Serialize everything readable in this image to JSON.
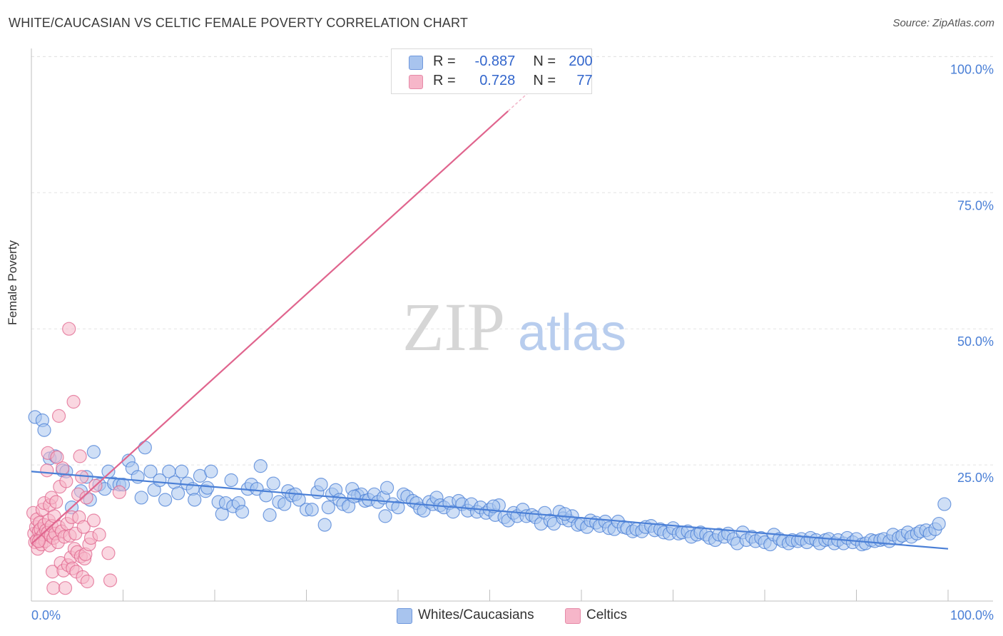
{
  "header": {
    "title": "WHITE/CAUCASIAN VS CELTIC FEMALE POVERTY CORRELATION CHART",
    "source": "Source: ZipAtlas.com"
  },
  "watermark": {
    "zip": "ZIP",
    "atlas": "atlas"
  },
  "legend": {
    "rows": [
      {
        "r_label": "R =",
        "r_value": "-0.887",
        "n_label": "N =",
        "n_value": "200",
        "color": "#a8c4ee"
      },
      {
        "r_label": "R =",
        "r_value": "0.728",
        "n_label": "N =",
        "n_value": "77",
        "color": "#f6b6c9"
      }
    ]
  },
  "bottom_legend": [
    {
      "label": "Whites/Caucasians",
      "color": "#a8c4ee"
    },
    {
      "label": "Celtics",
      "color": "#f6b6c9"
    }
  ],
  "chart_data": {
    "type": "scatter",
    "title": "WHITE/CAUCASIAN VS CELTIC FEMALE POVERTY CORRELATION CHART",
    "xlabel": "",
    "ylabel": "Female Poverty",
    "xlim": [
      0,
      100
    ],
    "ylim": [
      0,
      100
    ],
    "x_tick_labels": [
      "0.0%",
      "100.0%"
    ],
    "y_tick_labels": [
      "25.0%",
      "50.0%",
      "75.0%",
      "100.0%"
    ],
    "y_ticks": [
      25,
      50,
      75,
      100
    ],
    "grid": true,
    "legend_position": "top-center",
    "series": [
      {
        "name": "Whites/Caucasians",
        "color": "#4a7fd6",
        "fill": "#a8c4ee",
        "r": -0.887,
        "n": 200,
        "trend": {
          "x": [
            0,
            100
          ],
          "y": [
            23.8,
            9.6
          ]
        },
        "points": [
          [
            0.4,
            33.8
          ],
          [
            1.2,
            33.2
          ],
          [
            1.4,
            31.4
          ],
          [
            2.0,
            26.2
          ],
          [
            2.6,
            26.6
          ],
          [
            3.4,
            24.0
          ],
          [
            3.8,
            23.8
          ],
          [
            4.4,
            17.2
          ],
          [
            5.4,
            20.2
          ],
          [
            6.0,
            22.8
          ],
          [
            6.4,
            18.6
          ],
          [
            6.8,
            27.4
          ],
          [
            7.4,
            21.4
          ],
          [
            8.0,
            20.6
          ],
          [
            8.4,
            23.8
          ],
          [
            9.0,
            21.6
          ],
          [
            9.6,
            21.4
          ],
          [
            10.0,
            21.4
          ],
          [
            10.6,
            25.8
          ],
          [
            11.0,
            24.4
          ],
          [
            11.6,
            22.8
          ],
          [
            12.0,
            19.0
          ],
          [
            12.4,
            28.2
          ],
          [
            13.0,
            23.8
          ],
          [
            13.4,
            20.4
          ],
          [
            14.0,
            22.2
          ],
          [
            14.6,
            18.6
          ],
          [
            15.0,
            23.8
          ],
          [
            15.6,
            21.8
          ],
          [
            16.0,
            19.8
          ],
          [
            16.4,
            23.8
          ],
          [
            17.0,
            21.6
          ],
          [
            17.6,
            20.6
          ],
          [
            17.8,
            18.6
          ],
          [
            18.4,
            23.0
          ],
          [
            19.0,
            20.2
          ],
          [
            19.2,
            20.8
          ],
          [
            19.6,
            23.8
          ],
          [
            20.4,
            18.2
          ],
          [
            20.8,
            16.0
          ],
          [
            21.2,
            18.0
          ],
          [
            21.8,
            22.2
          ],
          [
            22.0,
            17.4
          ],
          [
            22.6,
            18.0
          ],
          [
            23.0,
            16.4
          ],
          [
            23.6,
            20.6
          ],
          [
            24.0,
            21.4
          ],
          [
            24.6,
            20.6
          ],
          [
            25.0,
            24.8
          ],
          [
            25.6,
            19.4
          ],
          [
            26.0,
            15.8
          ],
          [
            26.4,
            21.6
          ],
          [
            27.0,
            18.2
          ],
          [
            27.6,
            17.8
          ],
          [
            28.0,
            20.2
          ],
          [
            28.4,
            19.4
          ],
          [
            28.8,
            19.6
          ],
          [
            29.2,
            18.6
          ],
          [
            30.0,
            16.8
          ],
          [
            30.6,
            16.8
          ],
          [
            31.2,
            20.0
          ],
          [
            31.6,
            21.4
          ],
          [
            32.0,
            14.0
          ],
          [
            32.4,
            17.2
          ],
          [
            32.8,
            19.6
          ],
          [
            33.2,
            20.4
          ],
          [
            33.6,
            18.6
          ],
          [
            34.0,
            17.8
          ],
          [
            34.6,
            17.4
          ],
          [
            35.0,
            20.6
          ],
          [
            35.6,
            19.4
          ],
          [
            36.0,
            19.6
          ],
          [
            36.4,
            18.4
          ],
          [
            36.8,
            18.6
          ],
          [
            37.4,
            19.6
          ],
          [
            37.8,
            18.2
          ],
          [
            38.4,
            19.0
          ],
          [
            38.8,
            20.8
          ],
          [
            39.4,
            17.8
          ],
          [
            40.0,
            17.2
          ],
          [
            40.6,
            19.6
          ],
          [
            41.0,
            19.2
          ],
          [
            41.6,
            18.4
          ],
          [
            42.0,
            18.0
          ],
          [
            42.4,
            17.0
          ],
          [
            42.8,
            16.6
          ],
          [
            43.4,
            18.2
          ],
          [
            43.8,
            17.8
          ],
          [
            44.2,
            19.0
          ],
          [
            44.6,
            17.6
          ],
          [
            45.0,
            17.2
          ],
          [
            45.6,
            18.0
          ],
          [
            46.0,
            16.4
          ],
          [
            46.6,
            18.4
          ],
          [
            47.0,
            17.8
          ],
          [
            47.6,
            16.6
          ],
          [
            48.0,
            17.8
          ],
          [
            48.6,
            16.4
          ],
          [
            49.0,
            17.2
          ],
          [
            49.6,
            16.2
          ],
          [
            50.0,
            16.8
          ],
          [
            50.6,
            15.8
          ],
          [
            51.0,
            17.6
          ],
          [
            51.6,
            15.4
          ],
          [
            52.0,
            14.8
          ],
          [
            52.6,
            16.2
          ],
          [
            53.0,
            15.6
          ],
          [
            53.6,
            16.8
          ],
          [
            54.0,
            15.6
          ],
          [
            54.6,
            15.8
          ],
          [
            55.0,
            15.4
          ],
          [
            55.6,
            14.2
          ],
          [
            56.0,
            16.2
          ],
          [
            56.6,
            14.8
          ],
          [
            57.0,
            14.2
          ],
          [
            57.6,
            16.4
          ],
          [
            58.0,
            15.2
          ],
          [
            58.6,
            14.8
          ],
          [
            59.0,
            15.6
          ],
          [
            59.6,
            14.0
          ],
          [
            60.0,
            14.2
          ],
          [
            60.6,
            13.6
          ],
          [
            61.0,
            14.8
          ],
          [
            61.6,
            14.4
          ],
          [
            62.0,
            13.8
          ],
          [
            62.6,
            14.6
          ],
          [
            63.0,
            13.4
          ],
          [
            63.6,
            13.2
          ],
          [
            64.0,
            14.6
          ],
          [
            64.6,
            13.6
          ],
          [
            65.0,
            13.4
          ],
          [
            65.6,
            12.8
          ],
          [
            66.0,
            13.2
          ],
          [
            66.6,
            12.8
          ],
          [
            67.0,
            13.6
          ],
          [
            67.6,
            13.8
          ],
          [
            68.0,
            13.0
          ],
          [
            68.6,
            13.2
          ],
          [
            69.0,
            12.6
          ],
          [
            69.6,
            12.4
          ],
          [
            70.0,
            13.4
          ],
          [
            70.6,
            12.4
          ],
          [
            71.0,
            12.6
          ],
          [
            71.6,
            12.8
          ],
          [
            72.0,
            11.8
          ],
          [
            72.6,
            12.2
          ],
          [
            73.0,
            12.6
          ],
          [
            73.6,
            12.2
          ],
          [
            74.0,
            11.6
          ],
          [
            74.6,
            11.2
          ],
          [
            75.0,
            12.2
          ],
          [
            75.6,
            11.8
          ],
          [
            76.0,
            12.4
          ],
          [
            76.6,
            11.4
          ],
          [
            77.0,
            10.6
          ],
          [
            77.6,
            12.6
          ],
          [
            78.0,
            11.2
          ],
          [
            78.6,
            11.8
          ],
          [
            79.0,
            11.0
          ],
          [
            79.6,
            11.6
          ],
          [
            80.0,
            10.8
          ],
          [
            80.6,
            10.4
          ],
          [
            81.0,
            12.2
          ],
          [
            81.6,
            11.4
          ],
          [
            82.0,
            11.0
          ],
          [
            82.6,
            10.6
          ],
          [
            83.0,
            11.2
          ],
          [
            83.6,
            11.0
          ],
          [
            84.0,
            11.4
          ],
          [
            84.6,
            10.8
          ],
          [
            85.0,
            11.6
          ],
          [
            85.6,
            11.2
          ],
          [
            86.0,
            10.6
          ],
          [
            86.6,
            11.2
          ],
          [
            87.0,
            11.4
          ],
          [
            87.6,
            10.6
          ],
          [
            88.0,
            11.2
          ],
          [
            88.6,
            10.6
          ],
          [
            89.0,
            11.6
          ],
          [
            89.6,
            10.8
          ],
          [
            90.0,
            11.4
          ],
          [
            90.6,
            10.4
          ],
          [
            91.0,
            10.6
          ],
          [
            91.6,
            11.2
          ],
          [
            92.0,
            11.0
          ],
          [
            92.6,
            11.2
          ],
          [
            93.0,
            11.4
          ],
          [
            93.6,
            11.0
          ],
          [
            94.0,
            12.2
          ],
          [
            94.6,
            11.6
          ],
          [
            95.0,
            12.0
          ],
          [
            95.6,
            12.6
          ],
          [
            96.0,
            11.8
          ],
          [
            96.6,
            12.4
          ],
          [
            97.0,
            12.8
          ],
          [
            97.6,
            13.0
          ],
          [
            98.0,
            12.4
          ],
          [
            98.6,
            13.2
          ],
          [
            99.0,
            14.2
          ],
          [
            99.6,
            17.8
          ],
          [
            38.6,
            15.6
          ],
          [
            50.4,
            17.4
          ],
          [
            58.2,
            16.0
          ],
          [
            35.2,
            19.2
          ]
        ]
      },
      {
        "name": "Celtics",
        "color": "#e0658e",
        "fill": "#f6b6c9",
        "r": 0.728,
        "n": 77,
        "trend": {
          "x": [
            0,
            52
          ],
          "y": [
            10.5,
            90.0
          ]
        },
        "points": [
          [
            0.2,
            16.2
          ],
          [
            0.3,
            12.4
          ],
          [
            0.4,
            10.8
          ],
          [
            0.5,
            13.6
          ],
          [
            0.6,
            15.0
          ],
          [
            0.6,
            11.2
          ],
          [
            0.7,
            9.6
          ],
          [
            0.8,
            12.8
          ],
          [
            0.9,
            14.4
          ],
          [
            1.0,
            11.6
          ],
          [
            1.0,
            13.2
          ],
          [
            1.1,
            10.4
          ],
          [
            1.2,
            16.8
          ],
          [
            1.3,
            12.2
          ],
          [
            1.4,
            14.0
          ],
          [
            1.4,
            18.0
          ],
          [
            1.5,
            11.0
          ],
          [
            1.6,
            13.0
          ],
          [
            1.7,
            24.0
          ],
          [
            1.8,
            27.2
          ],
          [
            1.8,
            12.6
          ],
          [
            1.9,
            14.8
          ],
          [
            2.0,
            17.6
          ],
          [
            2.0,
            10.2
          ],
          [
            2.1,
            12.0
          ],
          [
            2.2,
            19.0
          ],
          [
            2.2,
            13.8
          ],
          [
            2.3,
            5.4
          ],
          [
            2.4,
            2.4
          ],
          [
            2.4,
            11.6
          ],
          [
            2.5,
            15.6
          ],
          [
            2.6,
            12.4
          ],
          [
            2.7,
            18.2
          ],
          [
            2.8,
            26.4
          ],
          [
            2.9,
            10.8
          ],
          [
            3.0,
            34.0
          ],
          [
            3.0,
            13.6
          ],
          [
            3.1,
            21.0
          ],
          [
            3.2,
            7.0
          ],
          [
            3.3,
            12.8
          ],
          [
            3.4,
            24.4
          ],
          [
            3.5,
            5.6
          ],
          [
            3.6,
            11.8
          ],
          [
            3.7,
            2.4
          ],
          [
            3.8,
            22.0
          ],
          [
            3.9,
            14.2
          ],
          [
            4.0,
            6.6
          ],
          [
            4.1,
            50.0
          ],
          [
            4.2,
            12.0
          ],
          [
            4.3,
            8.0
          ],
          [
            4.4,
            15.4
          ],
          [
            4.5,
            6.0
          ],
          [
            4.6,
            36.6
          ],
          [
            4.7,
            9.6
          ],
          [
            4.8,
            12.4
          ],
          [
            4.9,
            5.4
          ],
          [
            5.0,
            9.0
          ],
          [
            5.1,
            19.6
          ],
          [
            5.2,
            15.4
          ],
          [
            5.3,
            26.6
          ],
          [
            5.4,
            8.2
          ],
          [
            5.5,
            22.8
          ],
          [
            5.6,
            4.4
          ],
          [
            5.7,
            13.6
          ],
          [
            5.8,
            7.8
          ],
          [
            5.9,
            8.6
          ],
          [
            6.0,
            19.0
          ],
          [
            6.1,
            3.6
          ],
          [
            6.3,
            10.4
          ],
          [
            6.5,
            11.6
          ],
          [
            6.8,
            14.8
          ],
          [
            7.0,
            21.2
          ],
          [
            7.4,
            12.2
          ],
          [
            8.4,
            8.8
          ],
          [
            8.6,
            3.8
          ],
          [
            9.6,
            20.0
          ],
          [
            0.8,
            11.0
          ]
        ]
      }
    ]
  }
}
